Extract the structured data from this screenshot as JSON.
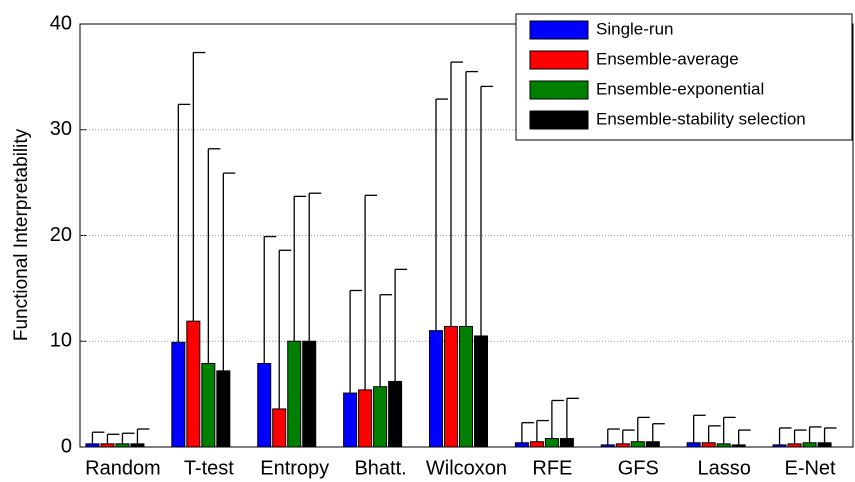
{
  "chart_data": {
    "type": "bar",
    "y_label": "Functional Interpretability",
    "categories": [
      "Random",
      "T-test",
      "Entropy",
      "Bhatt.",
      "Wilcoxon",
      "RFE",
      "GFS",
      "Lasso",
      "E-Net"
    ],
    "series": [
      {
        "name": "Single-run",
        "color": "#0000ff",
        "values": [
          0.3,
          9.9,
          7.9,
          5.1,
          11.0,
          0.4,
          0.2,
          0.4,
          0.2
        ],
        "errors": [
          1.1,
          22.5,
          12.0,
          9.7,
          21.9,
          1.9,
          1.5,
          2.6,
          1.6
        ]
      },
      {
        "name": "Ensemble-average",
        "color": "#ff0000",
        "values": [
          0.3,
          11.9,
          3.6,
          5.4,
          11.4,
          0.5,
          0.3,
          0.4,
          0.3
        ],
        "errors": [
          0.9,
          25.4,
          15.0,
          18.4,
          25.0,
          2.0,
          1.3,
          1.6,
          1.3
        ]
      },
      {
        "name": "Ensemble-exponential",
        "color": "#008000",
        "values": [
          0.3,
          7.9,
          10.0,
          5.7,
          11.4,
          0.8,
          0.5,
          0.3,
          0.4
        ],
        "errors": [
          1.0,
          20.3,
          13.7,
          8.7,
          24.1,
          3.6,
          2.3,
          2.5,
          1.5
        ]
      },
      {
        "name": "Ensemble-stability selection",
        "color": "#000000",
        "values": [
          0.3,
          7.2,
          10.0,
          6.2,
          10.5,
          0.8,
          0.5,
          0.2,
          0.4
        ],
        "errors": [
          1.4,
          18.7,
          14.0,
          10.6,
          23.6,
          3.8,
          1.7,
          1.4,
          1.4
        ]
      }
    ],
    "ylim": [
      0,
      40
    ],
    "yticks": [
      0,
      10,
      20,
      30,
      40
    ],
    "grid": true,
    "legend": "upper right"
  }
}
